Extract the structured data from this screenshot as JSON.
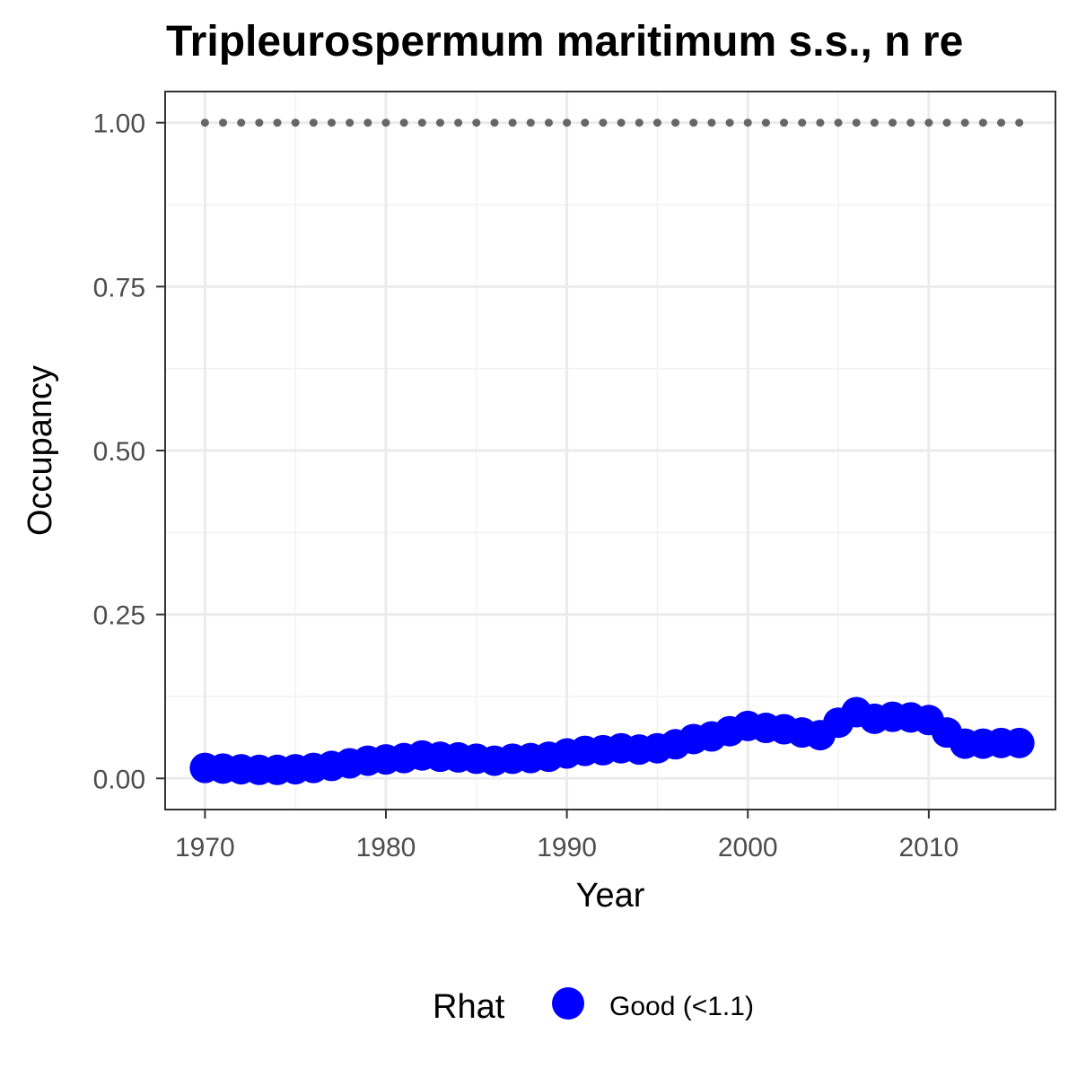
{
  "chart_data": {
    "type": "line",
    "title": "Tripleurospermum maritimum s.s., n re",
    "xlabel": "Year",
    "ylabel": "Occupancy",
    "xlim": [
      1967.8,
      2017.0
    ],
    "ylim": [
      -0.0475,
      1.0475
    ],
    "x_ticks": [
      1970,
      1980,
      1990,
      2000,
      2010
    ],
    "x_tick_labels": [
      "1970",
      "1980",
      "1990",
      "2000",
      "2010"
    ],
    "y_ticks": [
      0.0,
      0.25,
      0.5,
      0.75,
      1.0
    ],
    "y_tick_labels": [
      "0.00",
      "0.25",
      "0.50",
      "0.75",
      "1.00"
    ],
    "grid": true,
    "legend": {
      "title": "Rhat",
      "position": "bottom",
      "entries": [
        {
          "label": "Good (<1.1)",
          "color": "#0000ff"
        }
      ]
    },
    "x": [
      1970,
      1971,
      1972,
      1973,
      1974,
      1975,
      1976,
      1977,
      1978,
      1979,
      1980,
      1981,
      1982,
      1983,
      1984,
      1985,
      1986,
      1987,
      1988,
      1989,
      1990,
      1991,
      1992,
      1993,
      1994,
      1995,
      1996,
      1997,
      1998,
      1999,
      2000,
      2001,
      2002,
      2003,
      2004,
      2005,
      2006,
      2007,
      2008,
      2009,
      2010,
      2011,
      2012,
      2013,
      2014,
      2015
    ],
    "series": [
      {
        "name": "Good (<1.1)",
        "color": "#0000ff",
        "style": "line+points",
        "values": [
          0.016,
          0.015,
          0.014,
          0.013,
          0.013,
          0.014,
          0.016,
          0.019,
          0.023,
          0.027,
          0.029,
          0.031,
          0.035,
          0.033,
          0.032,
          0.03,
          0.027,
          0.03,
          0.031,
          0.033,
          0.038,
          0.042,
          0.043,
          0.046,
          0.044,
          0.046,
          0.052,
          0.06,
          0.064,
          0.072,
          0.08,
          0.077,
          0.075,
          0.07,
          0.066,
          0.085,
          0.101,
          0.091,
          0.094,
          0.093,
          0.089,
          0.07,
          0.053,
          0.053,
          0.054,
          0.054
        ]
      },
      {
        "name": "",
        "color": "#666666",
        "style": "dotted",
        "values": [
          1,
          1,
          1,
          1,
          1,
          1,
          1,
          1,
          1,
          1,
          1,
          1,
          1,
          1,
          1,
          1,
          1,
          1,
          1,
          1,
          1,
          1,
          1,
          1,
          1,
          1,
          1,
          1,
          1,
          1,
          1,
          1,
          1,
          1,
          1,
          1,
          1,
          1,
          1,
          1,
          1,
          1,
          1,
          1,
          1,
          1
        ]
      }
    ]
  }
}
